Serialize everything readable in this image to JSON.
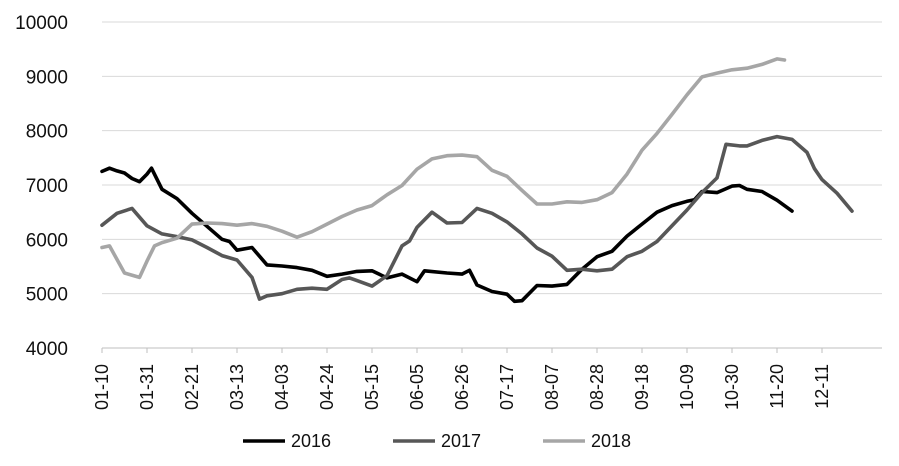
{
  "chart_data": {
    "type": "line",
    "title": "",
    "xlabel": "",
    "ylabel": "",
    "ylim": [
      4000,
      10000
    ],
    "yticks": [
      4000,
      5000,
      6000,
      7000,
      8000,
      9000,
      10000
    ],
    "week_range": [
      1,
      53
    ],
    "xticks": [
      {
        "week": 1,
        "label": "01-10"
      },
      {
        "week": 4,
        "label": "01-31"
      },
      {
        "week": 7,
        "label": "02-21"
      },
      {
        "week": 10,
        "label": "03-13"
      },
      {
        "week": 13,
        "label": "04-03"
      },
      {
        "week": 16,
        "label": "04-24"
      },
      {
        "week": 19,
        "label": "05-15"
      },
      {
        "week": 22,
        "label": "06-05"
      },
      {
        "week": 25,
        "label": "06-26"
      },
      {
        "week": 28,
        "label": "07-17"
      },
      {
        "week": 31,
        "label": "08-07"
      },
      {
        "week": 34,
        "label": "08-28"
      },
      {
        "week": 37,
        "label": "09-18"
      },
      {
        "week": 40,
        "label": "10-09"
      },
      {
        "week": 43,
        "label": "10-30"
      },
      {
        "week": 46,
        "label": "11-20"
      },
      {
        "week": 49,
        "label": "12-11"
      }
    ],
    "grid": true,
    "legend_position": "bottom",
    "series": [
      {
        "name": "2016",
        "color": "#000000",
        "points": [
          [
            1,
            7250
          ],
          [
            1.5,
            7310
          ],
          [
            2,
            7260
          ],
          [
            2.5,
            7220
          ],
          [
            3,
            7120
          ],
          [
            3.5,
            7060
          ],
          [
            4,
            7200
          ],
          [
            4.3,
            7310
          ],
          [
            5,
            6920
          ],
          [
            6,
            6750
          ],
          [
            7,
            6480
          ],
          [
            8,
            6240
          ],
          [
            9,
            6000
          ],
          [
            9.5,
            5960
          ],
          [
            10,
            5800
          ],
          [
            11,
            5850
          ],
          [
            12,
            5530
          ],
          [
            13,
            5510
          ],
          [
            14,
            5480
          ],
          [
            15,
            5430
          ],
          [
            16,
            5320
          ],
          [
            17,
            5360
          ],
          [
            18,
            5410
          ],
          [
            19,
            5420
          ],
          [
            20,
            5290
          ],
          [
            21,
            5360
          ],
          [
            22,
            5220
          ],
          [
            22.5,
            5420
          ],
          [
            24,
            5380
          ],
          [
            25,
            5360
          ],
          [
            25.5,
            5430
          ],
          [
            26,
            5160
          ],
          [
            27,
            5040
          ],
          [
            28,
            4990
          ],
          [
            28.5,
            4860
          ],
          [
            29,
            4870
          ],
          [
            30,
            5150
          ],
          [
            31,
            5140
          ],
          [
            32,
            5170
          ],
          [
            33,
            5450
          ],
          [
            34,
            5680
          ],
          [
            35,
            5780
          ],
          [
            36,
            6060
          ],
          [
            37,
            6280
          ],
          [
            38,
            6500
          ],
          [
            39,
            6620
          ],
          [
            40,
            6700
          ],
          [
            40.5,
            6730
          ],
          [
            41,
            6880
          ],
          [
            42,
            6860
          ],
          [
            43,
            6980
          ],
          [
            43.5,
            6990
          ],
          [
            44,
            6920
          ],
          [
            45,
            6880
          ],
          [
            46,
            6720
          ],
          [
            47,
            6520
          ]
        ]
      },
      {
        "name": "2017",
        "color": "#575757",
        "points": [
          [
            1,
            6260
          ],
          [
            2,
            6480
          ],
          [
            3,
            6570
          ],
          [
            4,
            6250
          ],
          [
            5,
            6100
          ],
          [
            6,
            6050
          ],
          [
            7,
            5990
          ],
          [
            8,
            5850
          ],
          [
            9,
            5700
          ],
          [
            10,
            5620
          ],
          [
            11,
            5300
          ],
          [
            11.5,
            4900
          ],
          [
            12,
            4960
          ],
          [
            13,
            5000
          ],
          [
            14,
            5080
          ],
          [
            15,
            5100
          ],
          [
            16,
            5080
          ],
          [
            17,
            5260
          ],
          [
            17.5,
            5290
          ],
          [
            18,
            5240
          ],
          [
            19,
            5140
          ],
          [
            20,
            5330
          ],
          [
            21,
            5880
          ],
          [
            21.5,
            5970
          ],
          [
            22,
            6220
          ],
          [
            23,
            6500
          ],
          [
            24,
            6300
          ],
          [
            25,
            6310
          ],
          [
            26,
            6570
          ],
          [
            27,
            6480
          ],
          [
            28,
            6320
          ],
          [
            29,
            6100
          ],
          [
            30,
            5840
          ],
          [
            31,
            5690
          ],
          [
            32,
            5430
          ],
          [
            33,
            5450
          ],
          [
            34,
            5420
          ],
          [
            35,
            5450
          ],
          [
            36,
            5680
          ],
          [
            37,
            5780
          ],
          [
            38,
            5960
          ],
          [
            39,
            6250
          ],
          [
            40,
            6540
          ],
          [
            41,
            6860
          ],
          [
            42,
            7130
          ],
          [
            42.6,
            7750
          ],
          [
            43.5,
            7720
          ],
          [
            44,
            7720
          ],
          [
            45,
            7820
          ],
          [
            46,
            7890
          ],
          [
            47,
            7840
          ],
          [
            48,
            7600
          ],
          [
            48.5,
            7300
          ],
          [
            49,
            7100
          ],
          [
            50,
            6850
          ],
          [
            51,
            6520
          ]
        ]
      },
      {
        "name": "2018",
        "color": "#a6a6a6",
        "points": [
          [
            1,
            5850
          ],
          [
            1.5,
            5880
          ],
          [
            2.5,
            5380
          ],
          [
            3.5,
            5300
          ],
          [
            4,
            5600
          ],
          [
            4.5,
            5880
          ],
          [
            5,
            5940
          ],
          [
            6,
            6020
          ],
          [
            7,
            6280
          ],
          [
            8,
            6300
          ],
          [
            9,
            6290
          ],
          [
            10,
            6260
          ],
          [
            11,
            6290
          ],
          [
            12,
            6240
          ],
          [
            13,
            6150
          ],
          [
            14,
            6040
          ],
          [
            15,
            6140
          ],
          [
            16,
            6280
          ],
          [
            17,
            6420
          ],
          [
            18,
            6540
          ],
          [
            19,
            6620
          ],
          [
            20,
            6820
          ],
          [
            21,
            6990
          ],
          [
            22,
            7290
          ],
          [
            23,
            7480
          ],
          [
            24,
            7540
          ],
          [
            25,
            7550
          ],
          [
            26,
            7520
          ],
          [
            27,
            7270
          ],
          [
            28,
            7160
          ],
          [
            29,
            6900
          ],
          [
            30,
            6650
          ],
          [
            31,
            6650
          ],
          [
            32,
            6690
          ],
          [
            33,
            6680
          ],
          [
            34,
            6730
          ],
          [
            35,
            6860
          ],
          [
            36,
            7200
          ],
          [
            37,
            7640
          ],
          [
            38,
            7950
          ],
          [
            39,
            8300
          ],
          [
            40,
            8660
          ],
          [
            41,
            8990
          ],
          [
            42,
            9060
          ],
          [
            43,
            9120
          ],
          [
            44,
            9150
          ],
          [
            45,
            9220
          ],
          [
            46,
            9320
          ],
          [
            46.5,
            9300
          ]
        ]
      }
    ]
  }
}
